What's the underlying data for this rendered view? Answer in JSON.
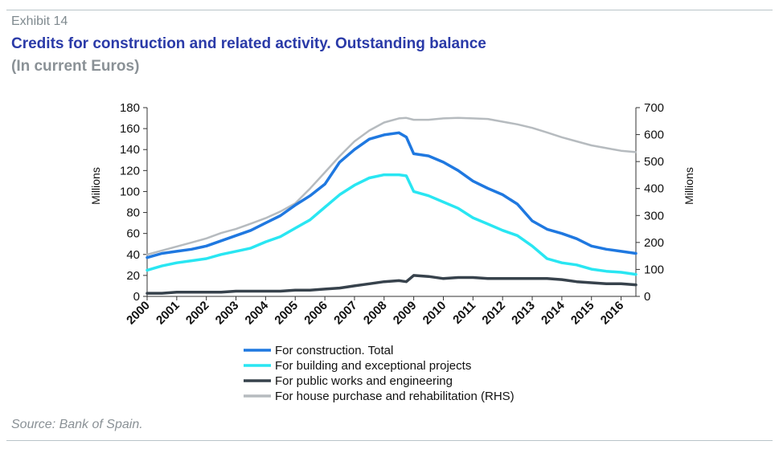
{
  "header": {
    "exhibit": "Exhibit 14",
    "title": "Credits for construction and related activity. Outstanding balance",
    "subtitle": "(In current Euros)"
  },
  "footer": {
    "source": "Source: Bank of Spain."
  },
  "chart_data": {
    "type": "line",
    "x": [
      2000,
      2000.5,
      2001,
      2001.5,
      2002,
      2002.5,
      2003,
      2003.5,
      2004,
      2004.5,
      2005,
      2005.5,
      2006,
      2006.5,
      2007,
      2007.5,
      2008,
      2008.5,
      2008.75,
      2009,
      2009.5,
      2010,
      2010.5,
      2011,
      2011.5,
      2012,
      2012.5,
      2013,
      2013.5,
      2014,
      2014.5,
      2015,
      2015.5,
      2016,
      2016.5
    ],
    "xticks": [
      "2000",
      "2001",
      "2002",
      "2003",
      "2004",
      "2005",
      "2006",
      "2007",
      "2008",
      "2009",
      "2010",
      "2011",
      "2012",
      "2013",
      "2014",
      "2015",
      "2016"
    ],
    "ylabel_left": "Millions",
    "ylabel_right": "Millions",
    "ylim_left": [
      0,
      180
    ],
    "ylim_right": [
      0,
      700
    ],
    "yticks_left": [
      "0",
      "20",
      "40",
      "60",
      "80",
      "100",
      "120",
      "140",
      "160",
      "180"
    ],
    "yticks_right": [
      "0",
      "100",
      "200",
      "300",
      "400",
      "500",
      "600",
      "700"
    ],
    "grid": false,
    "legend_position": "bottom",
    "series": [
      {
        "name": "For construction. Total",
        "axis": "left",
        "color": "#1f78e0",
        "values": [
          37,
          41,
          43,
          45,
          48,
          53,
          58,
          63,
          70,
          77,
          87,
          96,
          107,
          128,
          140,
          150,
          154,
          156,
          152,
          136,
          134,
          128,
          120,
          110,
          103,
          97,
          88,
          72,
          64,
          60,
          55,
          48,
          45,
          43,
          41
        ]
      },
      {
        "name": "For building and exceptional projects",
        "axis": "left",
        "color": "#29e6f2",
        "values": [
          25,
          29,
          32,
          34,
          36,
          40,
          43,
          46,
          52,
          57,
          65,
          73,
          85,
          97,
          106,
          113,
          116,
          116,
          115,
          100,
          96,
          90,
          84,
          75,
          69,
          63,
          58,
          48,
          36,
          32,
          30,
          26,
          24,
          23,
          21
        ]
      },
      {
        "name": "For public works and engineering",
        "axis": "left",
        "color": "#37424c",
        "values": [
          3,
          3,
          4,
          4,
          4,
          4,
          5,
          5,
          5,
          5,
          6,
          6,
          7,
          8,
          10,
          12,
          14,
          15,
          14,
          20,
          19,
          17,
          18,
          18,
          17,
          17,
          17,
          17,
          17,
          16,
          14,
          13,
          12,
          12,
          11
        ]
      },
      {
        "name": "For house purchase and rehabilitation (RHS)",
        "axis": "right",
        "color": "#b6bbbf",
        "values": [
          155,
          170,
          185,
          200,
          215,
          235,
          250,
          270,
          290,
          315,
          345,
          400,
          460,
          520,
          575,
          615,
          645,
          660,
          662,
          655,
          655,
          660,
          662,
          660,
          658,
          648,
          638,
          625,
          608,
          590,
          575,
          560,
          550,
          540,
          535
        ]
      }
    ]
  }
}
